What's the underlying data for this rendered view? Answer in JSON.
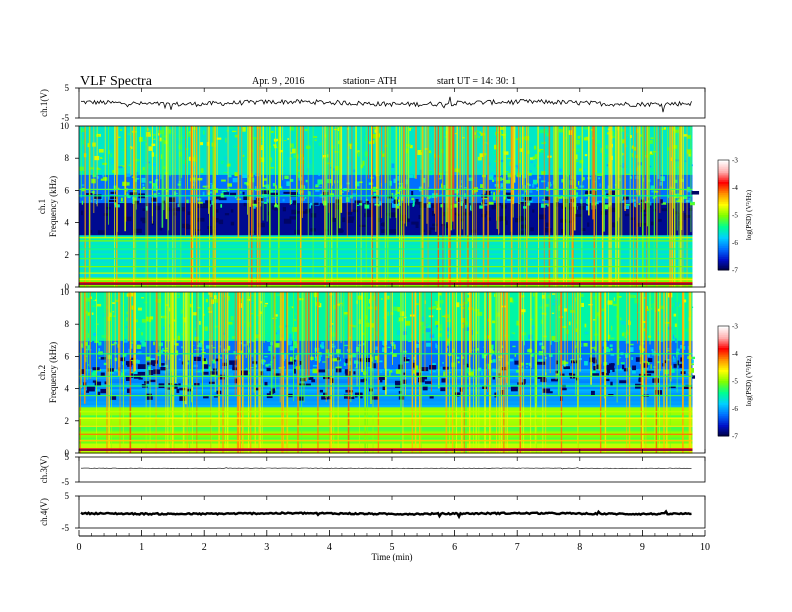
{
  "header": {
    "title": "VLF  Spectra",
    "date": "Apr. 9  , 2016",
    "station": "station= ATH",
    "start": "start  UT  =   14: 30: 1"
  },
  "colors": {
    "spectrogram_scale": [
      "#00003c",
      "#0010c8",
      "#0070ff",
      "#00d0ff",
      "#00ff90",
      "#80ff00",
      "#ffff00",
      "#ff9000",
      "#ff0000",
      "#ffb0b0",
      "#ffffff"
    ],
    "trace": "#000000"
  },
  "chart_data": [
    {
      "type": "line",
      "name": "ch1-waveform",
      "ylabel": "ch.1(V)",
      "ylim": [
        -5,
        5
      ],
      "yticks": [
        "5",
        "-5"
      ],
      "xlim": [
        0,
        10
      ],
      "level": 0,
      "description_values": "noisy voltage trace around 0 V"
    },
    {
      "type": "heatmap",
      "name": "ch1-spectrogram",
      "ylabel": "ch.1\nFrequency   (kHz)",
      "ylabel_channel": "ch.1",
      "ylabel_freq": "Frequency   (kHz)",
      "ylim": [
        0,
        10
      ],
      "yticks": [
        "0",
        "2",
        "4",
        "6",
        "8",
        "10"
      ],
      "xlim": [
        0,
        9.8
      ],
      "colorbar": {
        "label": "log(PSD) (V²/Hz)",
        "range": [
          -7,
          -3
        ],
        "ticks": [
          "-3",
          "-4",
          "-5",
          "-6",
          "-7"
        ]
      }
    },
    {
      "type": "heatmap",
      "name": "ch2-spectrogram",
      "ylabel_channel": "ch.2",
      "ylabel_freq": "Frequency   (kHz)",
      "ylim": [
        0,
        10
      ],
      "yticks": [
        "0",
        "2",
        "4",
        "6",
        "8",
        "10"
      ],
      "xlim": [
        0,
        9.8
      ],
      "colorbar": {
        "label": "log(PSD) (V²/Hz)",
        "range": [
          -7,
          -3
        ],
        "ticks": [
          "-3",
          "-4",
          "-5",
          "-6",
          "-7"
        ]
      }
    },
    {
      "type": "line",
      "name": "ch3-waveform",
      "ylabel": "ch.3(V)",
      "ylim": [
        -5,
        5
      ],
      "yticks": [
        "5",
        "-5"
      ],
      "level": 0.5
    },
    {
      "type": "line",
      "name": "ch4-waveform",
      "ylabel": "ch.4(V)",
      "ylim": [
        -5,
        5
      ],
      "yticks": [
        "5",
        "-5"
      ],
      "level": -0.5
    }
  ],
  "xaxis": {
    "label": "Time  (min)",
    "range": [
      0,
      10
    ],
    "ticks": [
      "0",
      "1",
      "2",
      "3",
      "4",
      "5",
      "6",
      "7",
      "8",
      "9",
      "10"
    ]
  }
}
